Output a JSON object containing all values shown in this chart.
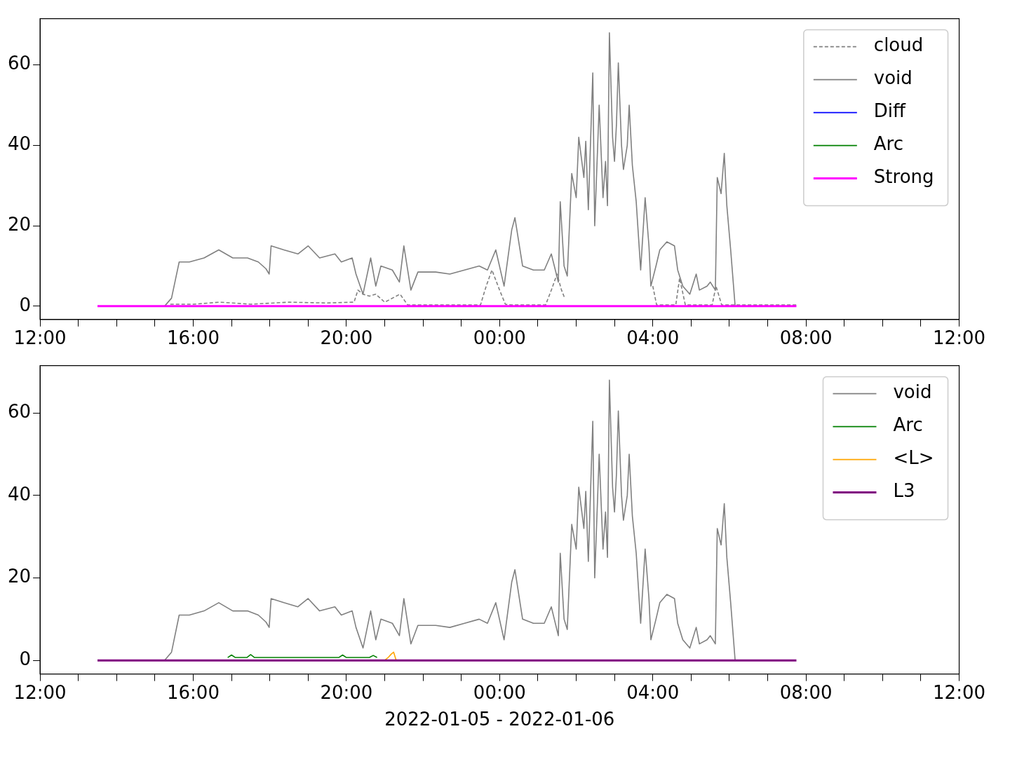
{
  "chart_data": [
    {
      "type": "line",
      "xlim": [
        "2022-01-05T12:00",
        "2022-01-06T12:00"
      ],
      "ylim": [
        -3.3,
        71.5
      ],
      "yticks": [
        0,
        20,
        40,
        60
      ],
      "xticks": [
        {
          "value": "2022-01-05T12:00",
          "label": "12:00"
        },
        {
          "value": "2022-01-05T13:00",
          "label": null
        },
        {
          "value": "2022-01-05T14:00",
          "label": null
        },
        {
          "value": "2022-01-05T15:00",
          "label": null
        },
        {
          "value": "2022-01-05T16:00",
          "label": "16:00"
        },
        {
          "value": "2022-01-05T17:00",
          "label": null
        },
        {
          "value": "2022-01-05T18:00",
          "label": null
        },
        {
          "value": "2022-01-05T19:00",
          "label": null
        },
        {
          "value": "2022-01-05T20:00",
          "label": "20:00"
        },
        {
          "value": "2022-01-05T21:00",
          "label": null
        },
        {
          "value": "2022-01-05T22:00",
          "label": null
        },
        {
          "value": "2022-01-05T23:00",
          "label": null
        },
        {
          "value": "2022-01-06T00:00",
          "label": "00:00"
        },
        {
          "value": "2022-01-06T01:00",
          "label": null
        },
        {
          "value": "2022-01-06T02:00",
          "label": null
        },
        {
          "value": "2022-01-06T03:00",
          "label": null
        },
        {
          "value": "2022-01-06T04:00",
          "label": "04:00"
        },
        {
          "value": "2022-01-06T05:00",
          "label": null
        },
        {
          "value": "2022-01-06T06:00",
          "label": null
        },
        {
          "value": "2022-01-06T07:00",
          "label": null
        },
        {
          "value": "2022-01-06T08:00",
          "label": "08:00"
        },
        {
          "value": "2022-01-06T09:00",
          "label": null
        },
        {
          "value": "2022-01-06T10:00",
          "label": null
        },
        {
          "value": "2022-01-06T11:00",
          "label": null
        },
        {
          "value": "2022-01-06T12:00",
          "label": "12:00"
        }
      ],
      "legend": "top right",
      "grid": false,
      "series": [
        {
          "name": "cloud",
          "color": "#808080",
          "line_style": "dashed",
          "x": [
            "2022-01-05T15:24",
            "2022-01-05T16:00",
            "2022-01-05T16:42",
            "2022-01-05T17:30",
            "2022-01-05T18:30",
            "2022-01-05T19:30",
            "2022-01-05T20:12",
            "2022-01-05T20:18",
            "2022-01-05T20:26",
            "2022-01-05T20:36",
            "2022-01-05T20:46",
            "2022-01-05T21:00",
            "2022-01-05T21:24",
            "2022-01-05T21:36",
            "2022-01-05T22:30",
            "2022-01-05T23:30",
            "2022-01-05T23:39",
            "2022-01-05T23:48",
            "2022-01-06T00:00",
            "2022-01-06T00:09",
            "2022-01-06T00:18",
            "2022-01-06T01:12",
            "2022-01-06T01:21",
            "2022-01-06T01:30",
            "2022-01-06T01:37",
            "2022-01-06T01:42",
            "2022-01-06T01:48",
            "2022-01-06T04:00",
            "2022-01-06T04:06",
            "2022-01-06T04:36",
            "2022-01-06T04:42",
            "2022-01-06T04:51",
            "2022-01-06T05:33",
            "2022-01-06T05:39",
            "2022-01-06T05:48",
            "2022-01-06T07:45"
          ],
          "values": [
            0.5,
            0.5,
            1,
            0.5,
            1,
            0.8,
            1,
            4,
            3,
            2.5,
            3,
            1,
            3,
            0.3,
            0.3,
            0.3,
            5,
            9,
            4,
            0.5,
            0.3,
            0.3,
            4,
            8,
            4,
            2,
            null,
            5,
            0.3,
            0.3,
            7,
            0.3,
            0.3,
            5,
            0.3,
            0.3
          ]
        },
        {
          "name": "void",
          "color": "#808080",
          "x": [
            "2022-01-05T13:30",
            "2022-01-05T15:15",
            "2022-01-05T15:26",
            "2022-01-05T15:38",
            "2022-01-05T15:54",
            "2022-01-05T16:17",
            "2022-01-05T16:40",
            "2022-01-05T17:02",
            "2022-01-05T17:25",
            "2022-01-05T17:42",
            "2022-01-05T17:54",
            "2022-01-05T17:59",
            "2022-01-05T18:02",
            "2022-01-05T18:22",
            "2022-01-05T18:44",
            "2022-01-05T19:00",
            "2022-01-05T19:18",
            "2022-01-05T19:42",
            "2022-01-05T19:52",
            "2022-01-05T20:09",
            "2022-01-05T20:15",
            "2022-01-05T20:26",
            "2022-01-05T20:38",
            "2022-01-05T20:46",
            "2022-01-05T20:54",
            "2022-01-05T21:12",
            "2022-01-05T21:23",
            "2022-01-05T21:30",
            "2022-01-05T21:41",
            "2022-01-05T21:52",
            "2022-01-05T22:20",
            "2022-01-05T22:42",
            "2022-01-05T23:05",
            "2022-01-05T23:28",
            "2022-01-05T23:41",
            "2022-01-05T23:54",
            "2022-01-06T00:07",
            "2022-01-06T00:19",
            "2022-01-06T00:24",
            "2022-01-06T00:36",
            "2022-01-06T00:53",
            "2022-01-06T01:10",
            "2022-01-06T01:21",
            "2022-01-06T01:32",
            "2022-01-06T01:35",
            "2022-01-06T01:41",
            "2022-01-06T01:46",
            "2022-01-06T01:53",
            "2022-01-06T02:00",
            "2022-01-06T02:04",
            "2022-01-06T02:12",
            "2022-01-06T02:15",
            "2022-01-06T02:19",
            "2022-01-06T02:26",
            "2022-01-06T02:29",
            "2022-01-06T02:36",
            "2022-01-06T02:42",
            "2022-01-06T02:46",
            "2022-01-06T02:49",
            "2022-01-06T02:52",
            "2022-01-06T02:57",
            "2022-01-06T03:00",
            "2022-01-06T03:03",
            "2022-01-06T03:06",
            "2022-01-06T03:11",
            "2022-01-06T03:14",
            "2022-01-06T03:20",
            "2022-01-06T03:23",
            "2022-01-06T03:28",
            "2022-01-06T03:34",
            "2022-01-06T03:41",
            "2022-01-06T03:48",
            "2022-01-06T03:54",
            "2022-01-06T03:57",
            "2022-01-06T04:05",
            "2022-01-06T04:11",
            "2022-01-06T04:22",
            "2022-01-06T04:34",
            "2022-01-06T04:39",
            "2022-01-06T04:47",
            "2022-01-06T04:58",
            "2022-01-06T05:08",
            "2022-01-06T05:13",
            "2022-01-06T05:25",
            "2022-01-06T05:30",
            "2022-01-06T05:38",
            "2022-01-06T05:41",
            "2022-01-06T05:47",
            "2022-01-06T05:52",
            "2022-01-06T05:56",
            "2022-01-06T06:02",
            "2022-01-06T06:09"
          ],
          "values": [
            0,
            0,
            2,
            11,
            11,
            12,
            14,
            12,
            12,
            11,
            9.3,
            8,
            15,
            14,
            13,
            15,
            12,
            13,
            11,
            12,
            8,
            3,
            12,
            5,
            10,
            9,
            6,
            15,
            4,
            8.5,
            8.5,
            8,
            9,
            10,
            9,
            14,
            5,
            19,
            22,
            10,
            9,
            9,
            13,
            6,
            26,
            10,
            7.5,
            33,
            27,
            42,
            32,
            41,
            24,
            58,
            20,
            50,
            27,
            36,
            25,
            68,
            42,
            36,
            45,
            60.5,
            40,
            34,
            40,
            50,
            35,
            26,
            9,
            27,
            15,
            5,
            10,
            14,
            16,
            15,
            9,
            5,
            3,
            8,
            4,
            5,
            6,
            4,
            32,
            28,
            38,
            25,
            14,
            0
          ]
        },
        {
          "name": "Diff",
          "color": "#0000ff"
        },
        {
          "name": "Arc",
          "color": "#008000"
        },
        {
          "name": "Strong",
          "color": "#ff00ff",
          "x": [
            "2022-01-05T13:30",
            "2022-01-06T07:45"
          ],
          "values": [
            0,
            0
          ]
        }
      ]
    },
    {
      "type": "line",
      "xlabel": "2022-01-05 - 2022-01-06",
      "xlim": [
        "2022-01-05T12:00",
        "2022-01-06T12:00"
      ],
      "ylim": [
        -3.3,
        71.5
      ],
      "yticks": [
        0,
        20,
        40,
        60
      ],
      "xticks": [
        {
          "value": "2022-01-05T12:00",
          "label": "12:00"
        },
        {
          "value": "2022-01-05T13:00",
          "label": null
        },
        {
          "value": "2022-01-05T14:00",
          "label": null
        },
        {
          "value": "2022-01-05T15:00",
          "label": null
        },
        {
          "value": "2022-01-05T16:00",
          "label": "16:00"
        },
        {
          "value": "2022-01-05T17:00",
          "label": null
        },
        {
          "value": "2022-01-05T18:00",
          "label": null
        },
        {
          "value": "2022-01-05T19:00",
          "label": null
        },
        {
          "value": "2022-01-05T20:00",
          "label": "20:00"
        },
        {
          "value": "2022-01-05T21:00",
          "label": null
        },
        {
          "value": "2022-01-05T22:00",
          "label": null
        },
        {
          "value": "2022-01-05T23:00",
          "label": null
        },
        {
          "value": "2022-01-06T00:00",
          "label": "00:00"
        },
        {
          "value": "2022-01-06T01:00",
          "label": null
        },
        {
          "value": "2022-01-06T02:00",
          "label": null
        },
        {
          "value": "2022-01-06T03:00",
          "label": null
        },
        {
          "value": "2022-01-06T04:00",
          "label": "04:00"
        },
        {
          "value": "2022-01-06T05:00",
          "label": null
        },
        {
          "value": "2022-01-06T06:00",
          "label": null
        },
        {
          "value": "2022-01-06T07:00",
          "label": null
        },
        {
          "value": "2022-01-06T08:00",
          "label": "08:00"
        },
        {
          "value": "2022-01-06T09:00",
          "label": null
        },
        {
          "value": "2022-01-06T10:00",
          "label": null
        },
        {
          "value": "2022-01-06T11:00",
          "label": null
        },
        {
          "value": "2022-01-06T12:00",
          "label": "12:00"
        }
      ],
      "legend": "top right",
      "grid": false,
      "series": [
        {
          "name": "void",
          "color": "#808080",
          "x": [
            "2022-01-05T13:30",
            "2022-01-05T15:15",
            "2022-01-05T15:26",
            "2022-01-05T15:38",
            "2022-01-05T15:54",
            "2022-01-05T16:17",
            "2022-01-05T16:40",
            "2022-01-05T17:02",
            "2022-01-05T17:25",
            "2022-01-05T17:42",
            "2022-01-05T17:54",
            "2022-01-05T17:59",
            "2022-01-05T18:02",
            "2022-01-05T18:22",
            "2022-01-05T18:44",
            "2022-01-05T19:00",
            "2022-01-05T19:18",
            "2022-01-05T19:42",
            "2022-01-05T19:52",
            "2022-01-05T20:09",
            "2022-01-05T20:15",
            "2022-01-05T20:26",
            "2022-01-05T20:38",
            "2022-01-05T20:46",
            "2022-01-05T20:54",
            "2022-01-05T21:12",
            "2022-01-05T21:23",
            "2022-01-05T21:30",
            "2022-01-05T21:41",
            "2022-01-05T21:52",
            "2022-01-05T22:20",
            "2022-01-05T22:42",
            "2022-01-05T23:05",
            "2022-01-05T23:28",
            "2022-01-05T23:41",
            "2022-01-05T23:54",
            "2022-01-06T00:07",
            "2022-01-06T00:19",
            "2022-01-06T00:24",
            "2022-01-06T00:36",
            "2022-01-06T00:53",
            "2022-01-06T01:10",
            "2022-01-06T01:21",
            "2022-01-06T01:32",
            "2022-01-06T01:35",
            "2022-01-06T01:41",
            "2022-01-06T01:46",
            "2022-01-06T01:53",
            "2022-01-06T02:00",
            "2022-01-06T02:04",
            "2022-01-06T02:12",
            "2022-01-06T02:15",
            "2022-01-06T02:19",
            "2022-01-06T02:26",
            "2022-01-06T02:29",
            "2022-01-06T02:36",
            "2022-01-06T02:42",
            "2022-01-06T02:46",
            "2022-01-06T02:49",
            "2022-01-06T02:52",
            "2022-01-06T02:57",
            "2022-01-06T03:00",
            "2022-01-06T03:03",
            "2022-01-06T03:06",
            "2022-01-06T03:11",
            "2022-01-06T03:14",
            "2022-01-06T03:20",
            "2022-01-06T03:23",
            "2022-01-06T03:28",
            "2022-01-06T03:34",
            "2022-01-06T03:41",
            "2022-01-06T03:48",
            "2022-01-06T03:54",
            "2022-01-06T03:57",
            "2022-01-06T04:05",
            "2022-01-06T04:11",
            "2022-01-06T04:22",
            "2022-01-06T04:34",
            "2022-01-06T04:39",
            "2022-01-06T04:47",
            "2022-01-06T04:58",
            "2022-01-06T05:08",
            "2022-01-06T05:13",
            "2022-01-06T05:25",
            "2022-01-06T05:30",
            "2022-01-06T05:38",
            "2022-01-06T05:41",
            "2022-01-06T05:47",
            "2022-01-06T05:52",
            "2022-01-06T05:56",
            "2022-01-06T06:02",
            "2022-01-06T06:09"
          ],
          "values": [
            0,
            0,
            2,
            11,
            11,
            12,
            14,
            12,
            12,
            11,
            9.3,
            8,
            15,
            14,
            13,
            15,
            12,
            13,
            11,
            12,
            8,
            3,
            12,
            5,
            10,
            9,
            6,
            15,
            4,
            8.5,
            8.5,
            8,
            9,
            10,
            9,
            14,
            5,
            19,
            22,
            10,
            9,
            9,
            13,
            6,
            26,
            10,
            7.5,
            33,
            27,
            42,
            32,
            41,
            24,
            58,
            20,
            50,
            27,
            36,
            25,
            68,
            42,
            36,
            45,
            60.5,
            40,
            34,
            40,
            50,
            35,
            26,
            9,
            27,
            15,
            5,
            10,
            14,
            16,
            15,
            9,
            5,
            3,
            8,
            4,
            5,
            6,
            4,
            32,
            28,
            38,
            25,
            14,
            0
          ]
        },
        {
          "name": "Arc",
          "color": "#008000",
          "x": [
            "2022-01-05T16:54",
            "2022-01-05T17:00",
            "2022-01-05T17:06",
            "2022-01-05T17:12",
            "2022-01-05T17:24",
            "2022-01-05T17:30",
            "2022-01-05T17:36",
            "2022-01-05T17:42",
            "2022-01-05T19:48",
            "2022-01-05T19:54",
            "2022-01-05T20:00",
            "2022-01-05T20:06",
            "2022-01-05T20:36",
            "2022-01-05T20:42",
            "2022-01-05T20:48"
          ],
          "values": [
            0.7,
            1.3,
            0.7,
            0.7,
            0.7,
            1.4,
            0.7,
            0.7,
            0.7,
            1.3,
            0.7,
            0.7,
            0.7,
            1.2,
            0.7
          ]
        },
        {
          "name": "<L>",
          "color": "#ffa500",
          "x": [
            "2022-01-05T21:00",
            "2022-01-05T21:06",
            "2022-01-05T21:10",
            "2022-01-05T21:14",
            "2022-01-05T21:18"
          ],
          "values": [
            0,
            0.8,
            1.5,
            2,
            0
          ]
        },
        {
          "name": "L3",
          "color": "#800080",
          "x": [
            "2022-01-05T13:30",
            "2022-01-06T07:45"
          ],
          "values": [
            0,
            0
          ]
        }
      ]
    }
  ]
}
